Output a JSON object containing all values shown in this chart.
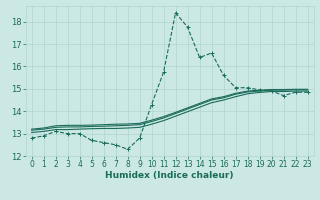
{
  "title": "",
  "xlabel": "Humidex (Indice chaleur)",
  "ylabel": "",
  "bg_color": "#cce8e4",
  "grid_color": "#b0d4d0",
  "line_color": "#1a6b5a",
  "spine_color": "#b0d4d0",
  "xlim": [
    -0.5,
    23.5
  ],
  "ylim": [
    12,
    18.7
  ],
  "yticks": [
    12,
    13,
    14,
    15,
    16,
    17,
    18
  ],
  "xticks": [
    0,
    1,
    2,
    3,
    4,
    5,
    6,
    7,
    8,
    9,
    10,
    11,
    12,
    13,
    14,
    15,
    16,
    17,
    18,
    19,
    20,
    21,
    22,
    23
  ],
  "series": {
    "line1": {
      "x": [
        0,
        1,
        2,
        3,
        4,
        5,
        6,
        7,
        8,
        9,
        10,
        11,
        12,
        13,
        14,
        15,
        16,
        17,
        18,
        19,
        20,
        21,
        22,
        23
      ],
      "y": [
        12.8,
        12.9,
        13.1,
        13.0,
        13.0,
        12.7,
        12.6,
        12.5,
        12.3,
        12.8,
        14.3,
        15.75,
        18.4,
        17.75,
        16.4,
        16.6,
        15.6,
        15.05,
        15.05,
        14.95,
        14.9,
        14.7,
        14.85,
        14.85
      ]
    },
    "line2": {
      "x": [
        0,
        1,
        2,
        3,
        4,
        5,
        6,
        7,
        8,
        9,
        10,
        11,
        12,
        13,
        14,
        15,
        16,
        17,
        18,
        19,
        20,
        21,
        22,
        23
      ],
      "y": [
        13.05,
        13.1,
        13.18,
        13.18,
        13.2,
        13.22,
        13.23,
        13.23,
        13.25,
        13.28,
        13.42,
        13.58,
        13.78,
        13.98,
        14.18,
        14.38,
        14.5,
        14.65,
        14.78,
        14.84,
        14.88,
        14.88,
        14.9,
        14.9
      ]
    },
    "line3": {
      "x": [
        0,
        1,
        2,
        3,
        4,
        5,
        6,
        7,
        8,
        9,
        10,
        11,
        12,
        13,
        14,
        15,
        16,
        17,
        18,
        19,
        20,
        21,
        22,
        23
      ],
      "y": [
        13.15,
        13.2,
        13.28,
        13.3,
        13.3,
        13.32,
        13.33,
        13.35,
        13.37,
        13.4,
        13.54,
        13.7,
        13.9,
        14.1,
        14.3,
        14.5,
        14.6,
        14.76,
        14.86,
        14.9,
        14.94,
        14.94,
        14.96,
        14.96
      ]
    },
    "line4": {
      "x": [
        0,
        1,
        2,
        3,
        4,
        5,
        6,
        7,
        8,
        9,
        10,
        11,
        12,
        13,
        14,
        15,
        16,
        17,
        18,
        19,
        20,
        21,
        22,
        23
      ],
      "y": [
        13.2,
        13.25,
        13.35,
        13.37,
        13.37,
        13.38,
        13.4,
        13.42,
        13.43,
        13.46,
        13.6,
        13.76,
        13.95,
        14.15,
        14.35,
        14.55,
        14.65,
        14.8,
        14.9,
        14.94,
        14.97,
        14.97,
        14.98,
        14.98
      ]
    }
  },
  "tick_fontsize": 5.5,
  "xlabel_fontsize": 6.5,
  "marker_size": 2.5,
  "line_width": 0.8
}
